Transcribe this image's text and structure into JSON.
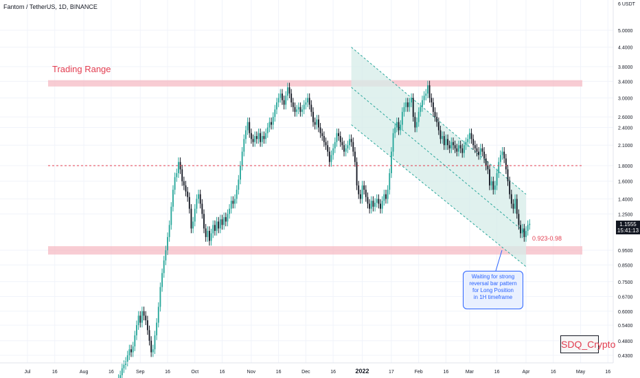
{
  "header": {
    "title": "Fantom / TetherUS, 1D, BINANCE",
    "currency_small": "6",
    "currency": "USDT"
  },
  "annotations": {
    "trading_range_label": "Trading Range",
    "target_label": "0.923-0.98",
    "callout_lines": [
      "Waiting for strong",
      "reversal bar pattern",
      "for Long Position",
      "in 1H timeframe"
    ],
    "watermark": "SDQ_Crypto"
  },
  "price_tag": {
    "price": "1.1555",
    "countdown": "15:41:13"
  },
  "colors": {
    "up": "#26a69a",
    "down": "#131722",
    "zone": "#f5b7c0",
    "level_line": "#e23c4f",
    "channel_fill": "#d6ece8",
    "channel_line": "#26a69a"
  },
  "chart_data": {
    "type": "candlestick",
    "y_scale": "log",
    "ylim": [
      0.38,
      6.2
    ],
    "y_ticks": [
      "5.0000",
      "4.4000",
      "3.8000",
      "3.4000",
      "3.0000",
      "2.6000",
      "2.4000",
      "2.1000",
      "1.8000",
      "1.6000",
      "1.4000",
      "1.2500",
      "0.9500",
      "0.8500",
      "0.7500",
      "0.6700",
      "0.6000",
      "0.5400",
      "0.4800",
      "0.4300"
    ],
    "x_ticks": [
      "Jul",
      "16",
      "Aug",
      "16",
      "Sep",
      "16",
      "Oct",
      "16",
      "Nov",
      "16",
      "Dec",
      "16",
      "2022",
      "17",
      "Feb",
      "16",
      "Mar",
      "16",
      "Apr",
      "16",
      "May",
      "16"
    ],
    "bold_x_ticks": [
      "2022"
    ],
    "levels": {
      "trading_range_top": [
        3.27,
        3.43
      ],
      "mid_level": 1.8,
      "support_zone": [
        0.92,
        0.98
      ]
    },
    "channel_dates": [
      "2021-12-26",
      "2022-04-01"
    ],
    "channel": {
      "upper": [
        4.4,
        1.45
      ],
      "middle": [
        3.25,
        1.08
      ],
      "lower": [
        2.45,
        0.84
      ]
    },
    "series": [
      {
        "start": "2021-08-20",
        "close": [
          0.36,
          0.37,
          0.39,
          0.4,
          0.41,
          0.43,
          0.45,
          0.44,
          0.46,
          0.5,
          0.54,
          0.58,
          0.55,
          0.6,
          0.58,
          0.56,
          0.52,
          0.48,
          0.44,
          0.45,
          0.5,
          0.55,
          0.62,
          0.72,
          0.8,
          0.88,
          0.95,
          1.05,
          1.15,
          1.32,
          1.5,
          1.65,
          1.7,
          1.85,
          1.75,
          1.6,
          1.55,
          1.48,
          1.42,
          1.3,
          1.12,
          1.18,
          1.3,
          1.4,
          1.45,
          1.35,
          1.25,
          1.12,
          1.05,
          1.1,
          1.02,
          1.08,
          1.15,
          1.1,
          1.18,
          1.12,
          1.2,
          1.15,
          1.22,
          1.18,
          1.25,
          1.3,
          1.38,
          1.35,
          1.4,
          1.5,
          1.62,
          1.8,
          2.0,
          2.2,
          2.35,
          2.5,
          2.3,
          2.2,
          2.15,
          2.25,
          2.2,
          2.3,
          2.15,
          2.25,
          2.2,
          2.3,
          2.4,
          2.5,
          2.45,
          2.6,
          2.75,
          2.9,
          3.0,
          3.1,
          2.95,
          2.85,
          3.05,
          3.25,
          3.1,
          2.9,
          2.8,
          2.7,
          2.75,
          2.8,
          2.7,
          2.75,
          2.85,
          2.9,
          3.0,
          2.85,
          2.7,
          2.5,
          2.45,
          2.55,
          2.4,
          2.3,
          2.25,
          2.15,
          2.1,
          2.0,
          1.85,
          1.95,
          2.05,
          2.15,
          2.3,
          2.25,
          2.15,
          2.1,
          2.0,
          2.05,
          2.1,
          2.2,
          2.15,
          2.0,
          1.85,
          1.55,
          1.45,
          1.4,
          1.55,
          1.5,
          1.42,
          1.35,
          1.3,
          1.38,
          1.32,
          1.36,
          1.4,
          1.35,
          1.3,
          1.38,
          1.45,
          1.4,
          1.5,
          1.7,
          2.0,
          2.3,
          2.4,
          2.5,
          2.35,
          2.45,
          2.7,
          2.8,
          2.9,
          2.8,
          2.9,
          3.0,
          2.6,
          2.4,
          2.5,
          2.7,
          2.8,
          2.95,
          3.05,
          3.1,
          3.3,
          3.0,
          2.9,
          2.7,
          2.6,
          2.5,
          2.35,
          2.2,
          2.25,
          2.1,
          2.2,
          2.1,
          2.05,
          2.15,
          2.1,
          2.05,
          2.0,
          2.1,
          2.05,
          1.98,
          2.1,
          2.15,
          2.2,
          2.3,
          2.2,
          2.1,
          2.05,
          2.0,
          1.95,
          2.05,
          2.0,
          1.9,
          1.8,
          1.75,
          1.55,
          1.6,
          1.5,
          1.55,
          1.7,
          1.85,
          1.95,
          2.0,
          1.9,
          1.75,
          1.6,
          1.45,
          1.35,
          1.3,
          1.4,
          1.25,
          1.15,
          1.08,
          1.12,
          1.05,
          1.1,
          1.15,
          1.16
        ]
      }
    ],
    "title": "Fantom / TetherUS, 1D, BINANCE"
  }
}
